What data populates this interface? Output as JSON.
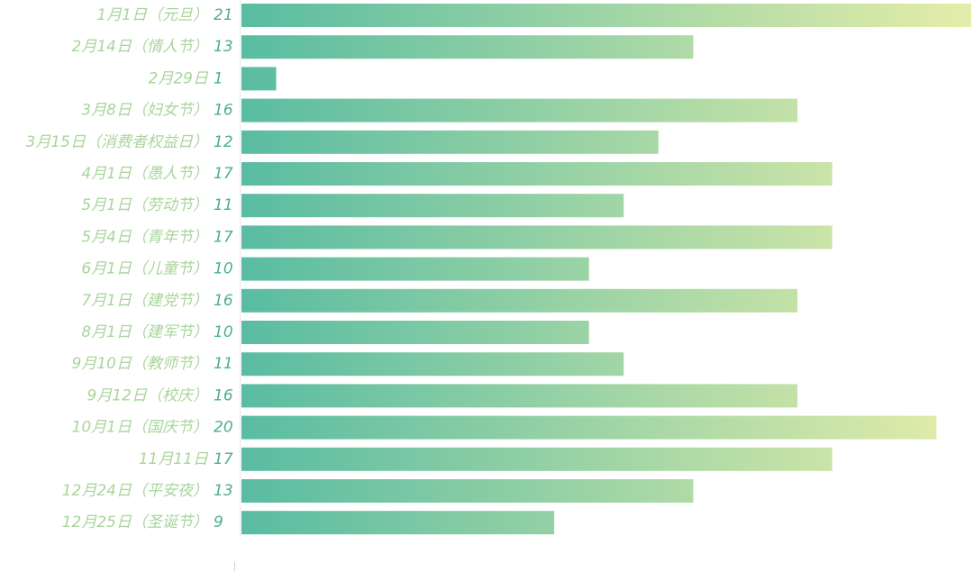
{
  "chart_data": {
    "type": "hbar",
    "categories": [
      "1月1日（元旦）",
      "2月14日（情人节）",
      "2月29日",
      "3月8日（妇女节）",
      "3月15日（消费者权益日）",
      "4月1日（愚人节）",
      "5月1日（劳动节）",
      "5月4日（青年节）",
      "6月1日（儿童节）",
      "7月1日（建党节）",
      "8月1日（建军节）",
      "9月10日（教师节）",
      "9月12日（校庆）",
      "10月1日（国庆节）",
      "11月11日",
      "12月24日（平安夜）",
      "12月25日（圣诞节）"
    ],
    "values": [
      21,
      13,
      1,
      16,
      12,
      17,
      11,
      17,
      10,
      16,
      10,
      11,
      16,
      20,
      17,
      13,
      9
    ],
    "colors": [
      "#59bca2",
      "#e5eda9"
    ]
  }
}
